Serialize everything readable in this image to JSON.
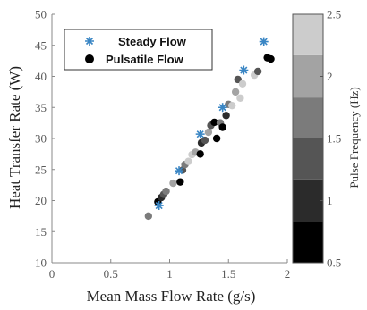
{
  "chart_data": {
    "type": "scatter",
    "xlabel": "Mean Mass Flow Rate (g/s)",
    "ylabel": "Heat Transfer Rate (W)",
    "xlim": [
      0,
      2
    ],
    "ylim": [
      10,
      50
    ],
    "xticks": [
      "0",
      "0.5",
      "1",
      "1.5",
      "2"
    ],
    "yticks": [
      "10",
      "15",
      "20",
      "25",
      "30",
      "35",
      "40",
      "45",
      "50"
    ],
    "grid": false,
    "legend_position": "top-left",
    "series": [
      {
        "name": "Steady Flow",
        "marker": "asterisk",
        "color": "#3a86c4",
        "points": [
          [
            0.91,
            19.2
          ],
          [
            1.08,
            24.8
          ],
          [
            1.26,
            30.7
          ],
          [
            1.45,
            35.0
          ],
          [
            1.63,
            41.0
          ],
          [
            1.8,
            45.6
          ]
        ]
      },
      {
        "name": "Pulsatile Flow",
        "marker": "circle",
        "color_by": "Pulse Frequency (Hz)",
        "points": [
          [
            0.82,
            17.5,
            1.6
          ],
          [
            0.9,
            19.8,
            0.6
          ],
          [
            0.93,
            20.5,
            0.9
          ],
          [
            0.95,
            21.0,
            1.4
          ],
          [
            0.97,
            21.5,
            1.8
          ],
          [
            1.03,
            22.8,
            2.1
          ],
          [
            1.09,
            23.0,
            0.6
          ],
          [
            1.11,
            24.9,
            1.2
          ],
          [
            1.13,
            25.8,
            1.7
          ],
          [
            1.16,
            26.3,
            2.2
          ],
          [
            1.19,
            27.4,
            2.4
          ],
          [
            1.22,
            27.8,
            1.9
          ],
          [
            1.26,
            27.5,
            0.6
          ],
          [
            1.27,
            29.3,
            1.0
          ],
          [
            1.3,
            29.7,
            1.5
          ],
          [
            1.33,
            31.0,
            2.0
          ],
          [
            1.35,
            32.1,
            1.3
          ],
          [
            1.38,
            32.6,
            0.8
          ],
          [
            1.4,
            30.0,
            0.6
          ],
          [
            1.43,
            32.5,
            1.6
          ],
          [
            1.45,
            31.8,
            0.7
          ],
          [
            1.48,
            33.7,
            1.1
          ],
          [
            1.5,
            35.5,
            1.8
          ],
          [
            1.53,
            35.3,
            2.2
          ],
          [
            1.56,
            37.5,
            2.0
          ],
          [
            1.58,
            39.5,
            1.5
          ],
          [
            1.6,
            36.5,
            2.3
          ],
          [
            1.62,
            38.8,
            2.4
          ],
          [
            1.72,
            40.2,
            2.3
          ],
          [
            1.75,
            40.8,
            1.2
          ],
          [
            1.83,
            43.0,
            0.6
          ],
          [
            1.86,
            42.8,
            0.8
          ]
        ]
      }
    ],
    "colorbar": {
      "label": "Pulse Frequency (Hz)",
      "range": [
        0.5,
        2.5
      ],
      "ticks": [
        "0.5",
        "1",
        "1.5",
        "2",
        "2.5"
      ],
      "levels": [
        {
          "from": 0.5,
          "to": 0.83,
          "color": "#000000"
        },
        {
          "from": 0.83,
          "to": 1.17,
          "color": "#2b2b2b"
        },
        {
          "from": 1.17,
          "to": 1.5,
          "color": "#555555"
        },
        {
          "from": 1.5,
          "to": 1.83,
          "color": "#7b7b7b"
        },
        {
          "from": 1.83,
          "to": 2.17,
          "color": "#a3a3a3"
        },
        {
          "from": 2.17,
          "to": 2.5,
          "color": "#cccccc"
        }
      ]
    }
  }
}
